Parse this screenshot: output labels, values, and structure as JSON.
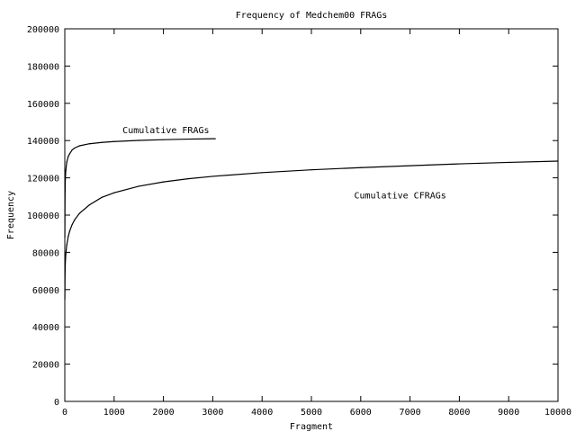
{
  "chart_data": {
    "type": "line",
    "title": "Frequency of Medchem00 FRAGs",
    "xlabel": "Fragment",
    "ylabel": "Frequency",
    "xlim": [
      0,
      10000
    ],
    "ylim": [
      0,
      200000
    ],
    "x_ticks": [
      "0",
      "1000",
      "2000",
      "3000",
      "4000",
      "5000",
      "6000",
      "7000",
      "8000",
      "9000",
      "10000"
    ],
    "y_ticks": [
      "0",
      "20000",
      "40000",
      "60000",
      "80000",
      "100000",
      "120000",
      "140000",
      "160000",
      "180000",
      "200000"
    ],
    "grid": false,
    "legend": "none",
    "series": [
      {
        "name": "Cumulative FRAGs",
        "x": [
          1,
          5,
          10,
          20,
          40,
          70,
          100,
          150,
          200,
          300,
          500,
          750,
          1000,
          1500,
          2000,
          2500,
          3050
        ],
        "y": [
          88000,
          110000,
          119000,
          124000,
          128500,
          131500,
          133000,
          135000,
          136000,
          137200,
          138300,
          139000,
          139500,
          140100,
          140500,
          140800,
          141000
        ]
      },
      {
        "name": "Cumulative CFRAGs",
        "x": [
          1,
          5,
          10,
          20,
          40,
          70,
          100,
          150,
          200,
          300,
          500,
          750,
          1000,
          1500,
          2000,
          2500,
          3000,
          4000,
          5000,
          6000,
          7000,
          8000,
          9000,
          10000
        ],
        "y": [
          55000,
          68000,
          74000,
          79000,
          84000,
          88500,
          91500,
          95000,
          97500,
          101000,
          105500,
          109500,
          112000,
          115500,
          117800,
          119500,
          120800,
          122800,
          124300,
          125500,
          126500,
          127500,
          128300,
          129000
        ]
      }
    ],
    "annotations": [
      {
        "text": "Cumulative FRAGs",
        "x": 2050,
        "y": 144000
      },
      {
        "text": "Cumulative CFRAGs",
        "x": 6800,
        "y": 109000
      }
    ]
  }
}
